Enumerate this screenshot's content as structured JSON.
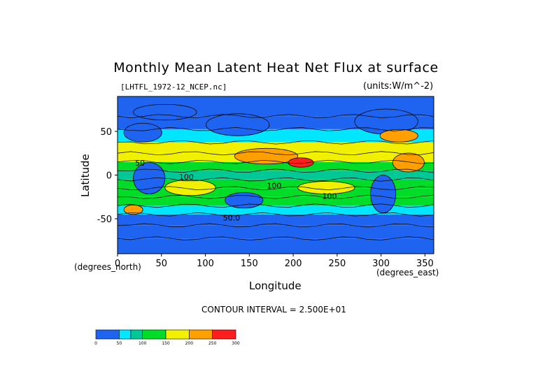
{
  "chart_data": {
    "type": "heatmap",
    "title": "Monthly Mean Latent Heat Net Flux at surface",
    "source_file": "[LHTFL_1972-12_NCEP.nc]",
    "units": "(units:W/m^-2)",
    "xlabel": "Longitude",
    "ylabel": "Latitude",
    "x_unit_label": "(degrees_east)",
    "y_unit_label": "(degrees_north)",
    "xlim": [
      0,
      360
    ],
    "ylim": [
      -90,
      90
    ],
    "x_ticks": [
      "0",
      "50",
      "100",
      "150",
      "200",
      "250",
      "300",
      "350"
    ],
    "y_ticks": [
      "50",
      "0",
      "-50"
    ],
    "contour_interval": "CONTOUR INTERVAL = 2.500E+01",
    "contour_labels": [
      {
        "text": "100",
        "lon": 70,
        "lat": -5
      },
      {
        "text": "50",
        "lon": 20,
        "lat": 11
      },
      {
        "text": "100",
        "lon": 170,
        "lat": -15
      },
      {
        "text": "100",
        "lon": 233,
        "lat": -27
      },
      {
        "text": "50.0",
        "lon": 120,
        "lat": -52
      }
    ],
    "colorbar": {
      "ticks": [
        "0",
        "50",
        "100",
        "150",
        "200",
        "250",
        "300"
      ],
      "bins": [
        {
          "min": 0,
          "max": 50,
          "color": "#1e64f0"
        },
        {
          "min": 50,
          "max": 75,
          "color": "#00e6ff"
        },
        {
          "min": 75,
          "max": 100,
          "color": "#00c896"
        },
        {
          "min": 100,
          "max": 150,
          "color": "#00dc28"
        },
        {
          "min": 150,
          "max": 200,
          "color": "#f0f000"
        },
        {
          "min": 200,
          "max": 250,
          "color": "#ffa000"
        },
        {
          "min": 250,
          "max": 300,
          "color": "#ff1e1e"
        }
      ]
    },
    "latitude_band_means": [
      {
        "lat": -80,
        "value": 10
      },
      {
        "lat": -65,
        "value": 25
      },
      {
        "lat": -50,
        "value": 45
      },
      {
        "lat": -40,
        "value": 65
      },
      {
        "lat": -30,
        "value": 110
      },
      {
        "lat": -20,
        "value": 140
      },
      {
        "lat": -10,
        "value": 120
      },
      {
        "lat": 0,
        "value": 95
      },
      {
        "lat": 10,
        "value": 130
      },
      {
        "lat": 20,
        "value": 170
      },
      {
        "lat": 30,
        "value": 150
      },
      {
        "lat": 45,
        "value": 60
      },
      {
        "lat": 60,
        "value": 30
      },
      {
        "lat": 75,
        "value": 15
      }
    ]
  }
}
